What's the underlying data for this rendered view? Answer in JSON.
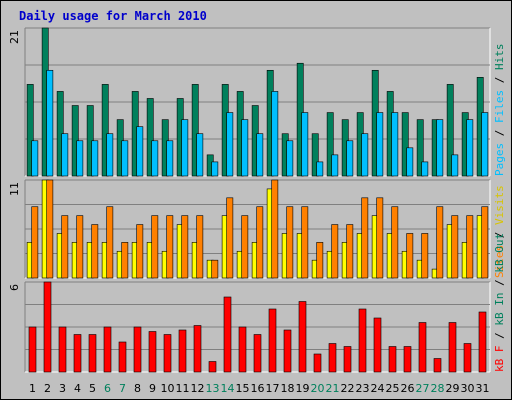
{
  "chart_data": {
    "type": "bar",
    "title": "Daily usage for March 2010",
    "categories": [
      "1",
      "2",
      "3",
      "4",
      "5",
      "6",
      "7",
      "8",
      "9",
      "10",
      "11",
      "12",
      "13",
      "14",
      "15",
      "16",
      "17",
      "18",
      "19",
      "20",
      "21",
      "22",
      "23",
      "24",
      "25",
      "26",
      "27",
      "28",
      "29",
      "30",
      "31"
    ],
    "weekend_days": [
      "6",
      "7",
      "13",
      "14",
      "20",
      "21",
      "27",
      "28"
    ],
    "panels": [
      {
        "id": "hits",
        "ymax_label": "21",
        "ylim": [
          0,
          21
        ],
        "grid_lines": 3,
        "series": [
          {
            "name": "Hits",
            "color": "#00805c",
            "values": [
              13,
              21,
              12,
              10,
              10,
              13,
              8,
              12,
              11,
              8,
              11,
              13,
              3,
              13,
              12,
              10,
              15,
              6,
              16,
              6,
              9,
              8,
              9,
              15,
              12,
              9,
              8,
              8,
              13,
              9,
              14
            ]
          },
          {
            "name": "Files",
            "color": "#00bfff",
            "values": [
              5,
              15,
              6,
              5,
              5,
              6,
              5,
              7,
              5,
              5,
              8,
              6,
              2,
              9,
              8,
              6,
              12,
              5,
              9,
              2,
              3,
              5,
              6,
              9,
              9,
              4,
              2,
              8,
              3,
              8,
              9
            ]
          },
          {
            "name": "Pages",
            "color": "#00bfff",
            "values": []
          }
        ],
        "legend": [
          {
            "text": "Pages",
            "color": "#00bfff"
          },
          {
            "text": " / ",
            "color": "#000000"
          },
          {
            "text": "Files",
            "color": "#00bfff"
          },
          {
            "text": " / ",
            "color": "#000000"
          },
          {
            "text": "Hits",
            "color": "#00805c"
          }
        ]
      },
      {
        "id": "visits",
        "ymax_label": "11",
        "ylim": [
          0,
          11
        ],
        "grid_lines": 3,
        "series": [
          {
            "name": "Visits",
            "color": "#ffff00",
            "values": [
              4,
              11,
              5,
              4,
              4,
              4,
              3,
              4,
              4,
              3,
              6,
              4,
              2,
              7,
              3,
              4,
              10,
              5,
              5,
              2,
              3,
              4,
              5,
              7,
              5,
              3,
              2,
              1,
              6,
              4,
              7
            ]
          },
          {
            "name": "Sites",
            "color": "#ff8000",
            "values": [
              8,
              11,
              7,
              7,
              6,
              8,
              4,
              6,
              7,
              7,
              7,
              7,
              2,
              9,
              7,
              8,
              11,
              8,
              8,
              4,
              6,
              6,
              9,
              9,
              8,
              5,
              5,
              8,
              7,
              7,
              8
            ]
          }
        ],
        "legend": [
          {
            "text": "Sites",
            "color": "#ff8000"
          },
          {
            "text": " / ",
            "color": "#000000"
          },
          {
            "text": "Visits",
            "color": "#d8c400"
          }
        ]
      },
      {
        "id": "kbf",
        "ymax_label": "6",
        "ylim": [
          0,
          6
        ],
        "grid_lines": 3,
        "series": [
          {
            "name": "kB F",
            "color": "#ff0000",
            "values": [
              3,
              6,
              3,
              2.5,
              2.5,
              3,
              2,
              3,
              2.7,
              2.5,
              2.8,
              3.1,
              0.7,
              5,
              3,
              2.5,
              4.2,
              2.8,
              4.7,
              1.2,
              1.9,
              1.7,
              4.2,
              3.6,
              1.7,
              1.7,
              3.3,
              0.9,
              3.3,
              1.9,
              4
            ]
          }
        ],
        "legend": [
          {
            "text": "kB F",
            "color": "#ff0000"
          },
          {
            "text": " / ",
            "color": "#000000"
          },
          {
            "text": "kB In",
            "color": "#00805c"
          },
          {
            "text": " / ",
            "color": "#000000"
          },
          {
            "text": "kB Out",
            "color": "#00805c"
          }
        ]
      }
    ]
  },
  "colors": {
    "background": "#c0c0c0",
    "title": "#0000cc",
    "weekday_label": "#000000",
    "weekend_label": "#00805c"
  }
}
